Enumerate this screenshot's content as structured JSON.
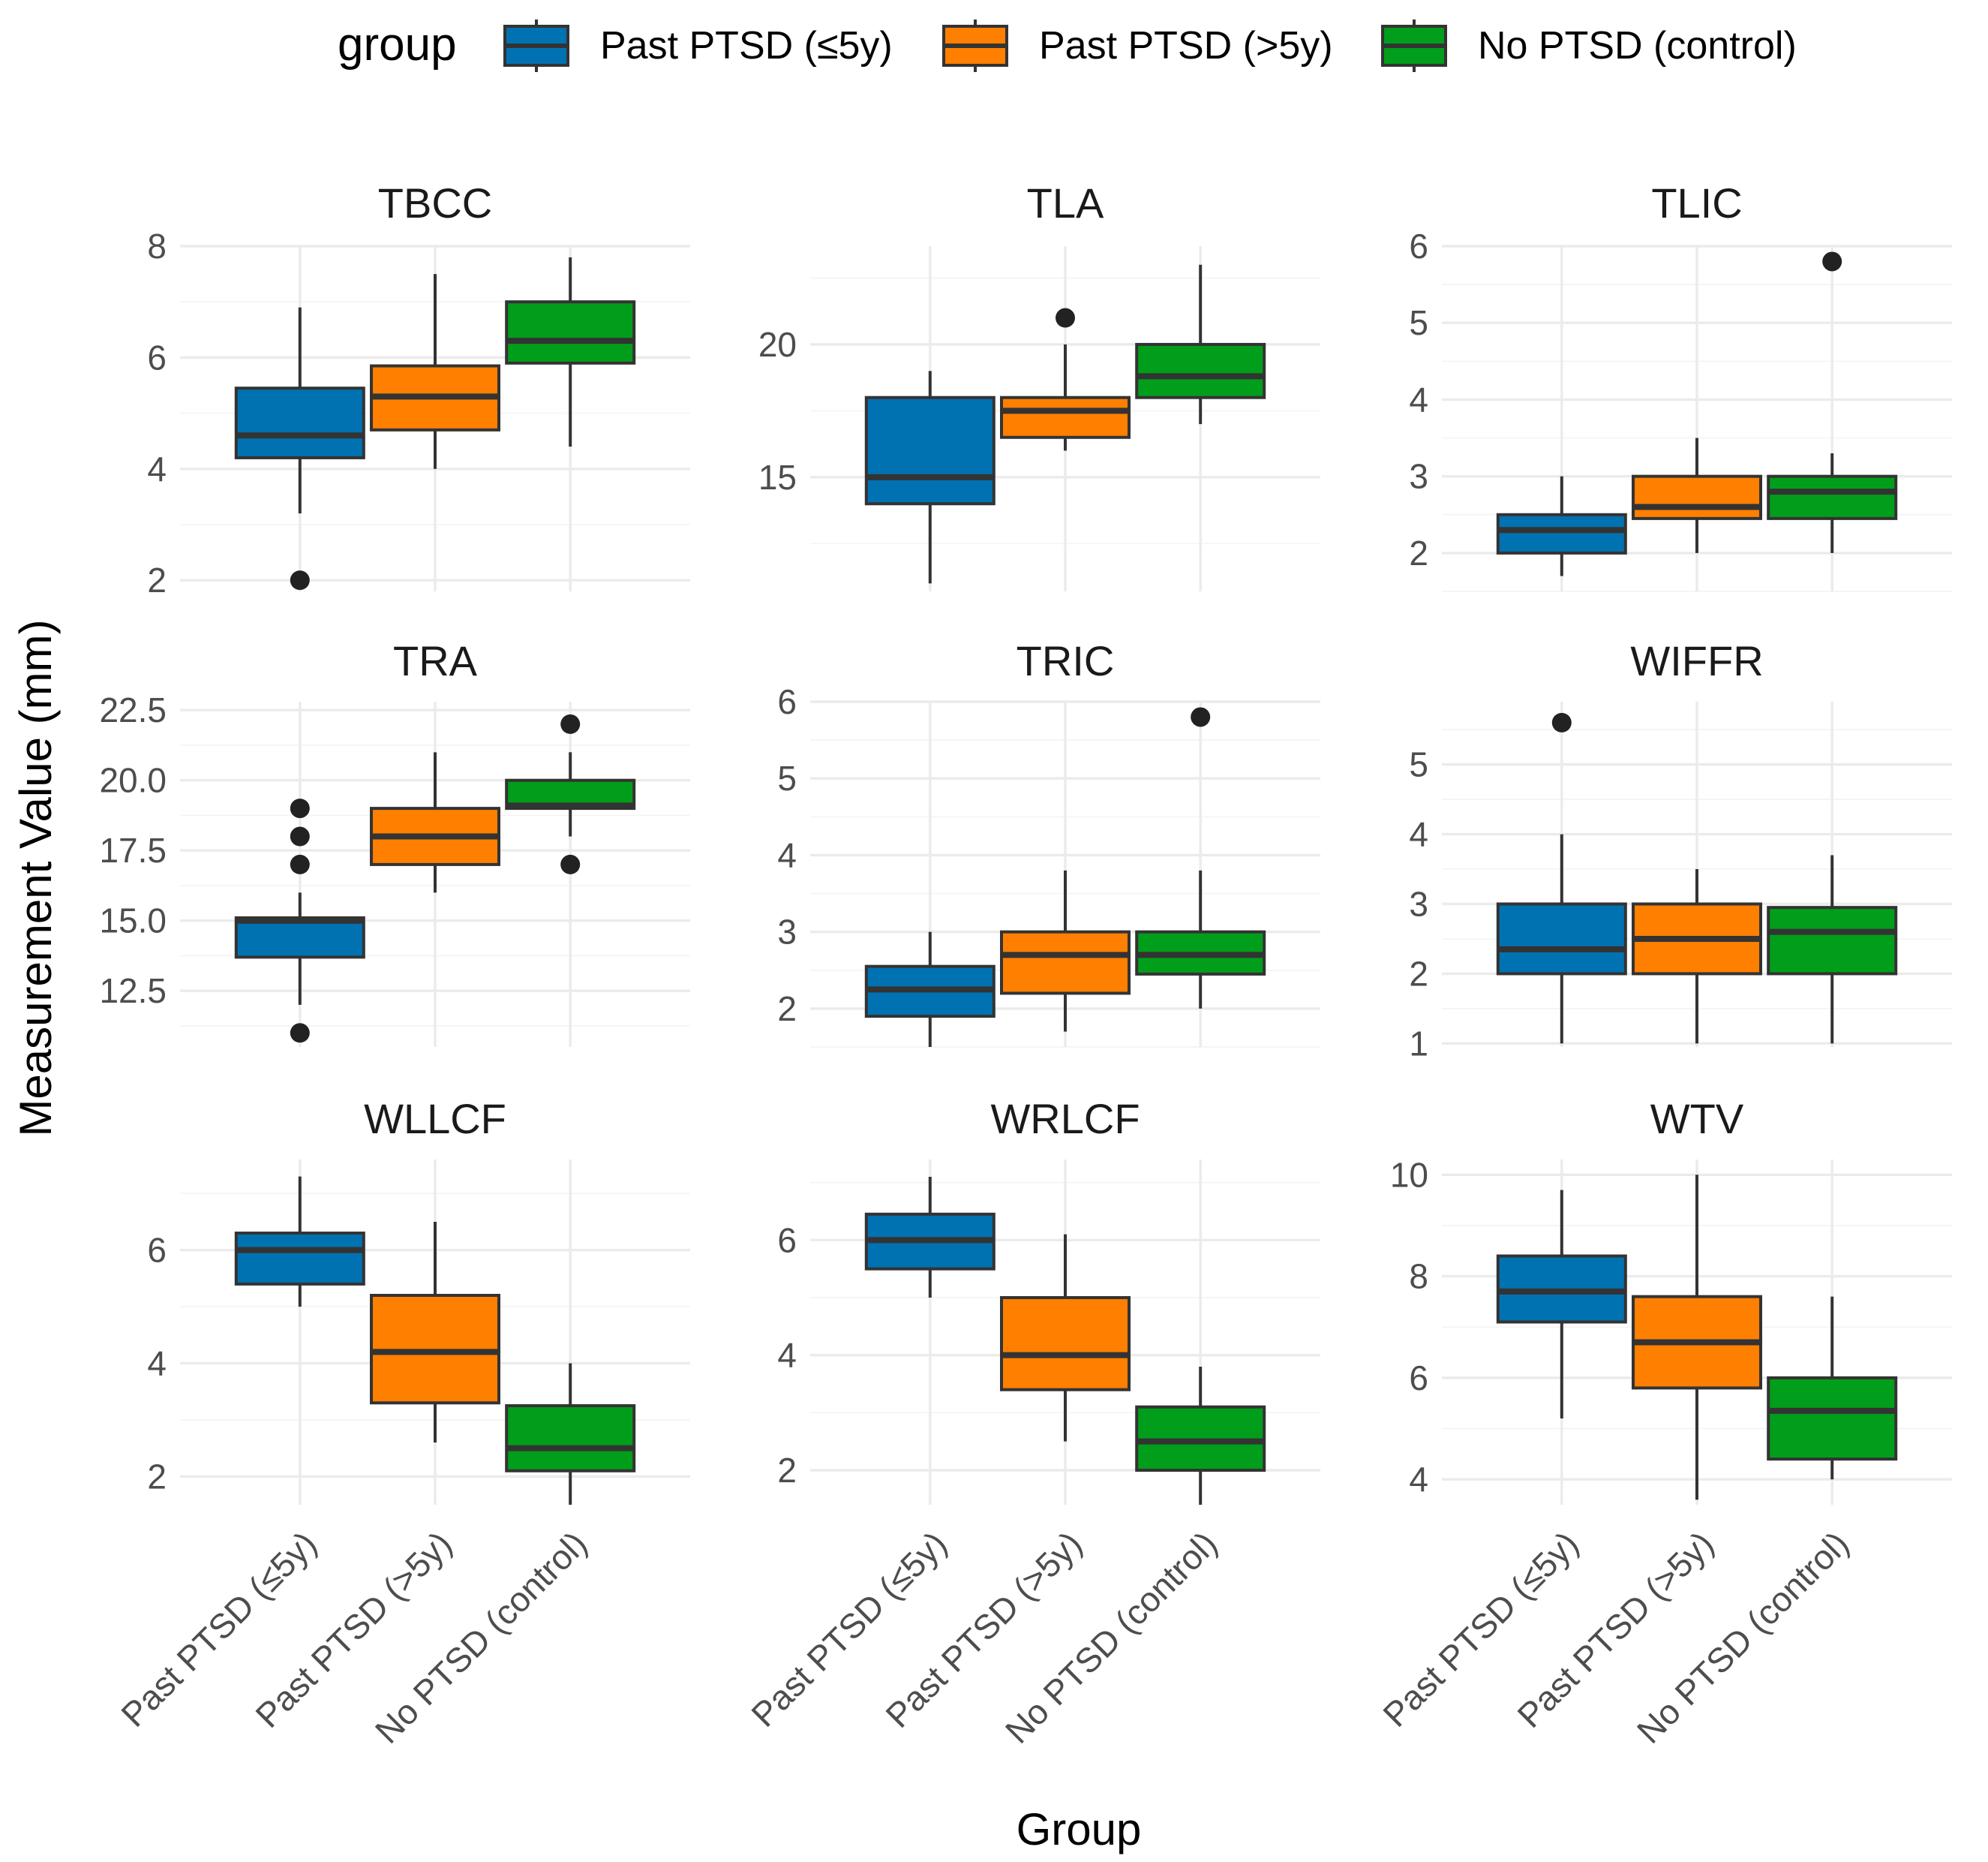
{
  "chart_data": {
    "type": "boxplot",
    "facet_layout": "3x3 grid, free y scales",
    "legend": {
      "title": "group",
      "position": "top",
      "entries": [
        {
          "label": "Past PTSD (≤5y)",
          "color": "#0072B2"
        },
        {
          "label": "Past PTSD (>5y)",
          "color": "#FF7F00"
        },
        {
          "label": "No PTSD (control)",
          "color": "#009E1A"
        }
      ]
    },
    "categories": [
      "Past PTSD (≤5y)",
      "Past PTSD (>5y)",
      "No PTSD (control)"
    ],
    "xlabel": "Group",
    "ylabel": "Measurement Value (mm)",
    "colors": {
      "median_line": "#333333",
      "outline": "#333333",
      "outlier": "#222222"
    },
    "panels": [
      {
        "title": "TBCC",
        "ylim": [
          1.8,
          8.0
        ],
        "yticks": [
          "2",
          "4",
          "6",
          "8"
        ],
        "ytick_values": [
          2,
          4,
          6,
          8
        ],
        "boxes": [
          {
            "min": 3.2,
            "q1": 4.2,
            "median": 4.6,
            "q3": 5.45,
            "max": 6.9,
            "outliers": [
              2.0
            ]
          },
          {
            "min": 4.0,
            "q1": 4.7,
            "median": 5.3,
            "q3": 5.85,
            "max": 7.5,
            "outliers": []
          },
          {
            "min": 4.4,
            "q1": 5.9,
            "median": 6.3,
            "q3": 7.0,
            "max": 7.8,
            "outliers": []
          }
        ]
      },
      {
        "title": "TLA",
        "ylim": [
          10.7,
          23.7
        ],
        "yticks": [
          "15",
          "20"
        ],
        "ytick_values": [
          15,
          20
        ],
        "boxes": [
          {
            "min": 11.0,
            "q1": 14.0,
            "median": 15.0,
            "q3": 18.0,
            "max": 19.0,
            "outliers": []
          },
          {
            "min": 16.0,
            "q1": 16.5,
            "median": 17.5,
            "q3": 18.0,
            "max": 20.0,
            "outliers": [
              21.0
            ]
          },
          {
            "min": 17.0,
            "q1": 18.0,
            "median": 18.8,
            "q3": 20.0,
            "max": 23.0,
            "outliers": []
          }
        ]
      },
      {
        "title": "TLIC",
        "ylim": [
          1.5,
          6.0
        ],
        "yticks": [
          "2",
          "3",
          "4",
          "5",
          "6"
        ],
        "ytick_values": [
          2,
          3,
          4,
          5,
          6
        ],
        "boxes": [
          {
            "min": 1.7,
            "q1": 2.0,
            "median": 2.3,
            "q3": 2.5,
            "max": 3.0,
            "outliers": []
          },
          {
            "min": 2.0,
            "q1": 2.45,
            "median": 2.6,
            "q3": 3.0,
            "max": 3.5,
            "outliers": []
          },
          {
            "min": 2.0,
            "q1": 2.45,
            "median": 2.8,
            "q3": 3.0,
            "max": 3.3,
            "outliers": [
              5.8
            ]
          }
        ]
      },
      {
        "title": "TRA",
        "ylim": [
          10.5,
          22.8
        ],
        "yticks": [
          "12.5",
          "15.0",
          "17.5",
          "20.0",
          "22.5"
        ],
        "ytick_values": [
          12.5,
          15.0,
          17.5,
          20.0,
          22.5
        ],
        "boxes": [
          {
            "min": 12.0,
            "q1": 13.7,
            "median": 15.0,
            "q3": 15.1,
            "max": 16.0,
            "outliers": [
              11.0,
              17.0,
              18.0,
              19.0
            ]
          },
          {
            "min": 16.0,
            "q1": 17.0,
            "median": 18.0,
            "q3": 19.0,
            "max": 21.0,
            "outliers": []
          },
          {
            "min": 18.0,
            "q1": 19.0,
            "median": 19.1,
            "q3": 20.0,
            "max": 21.0,
            "outliers": [
              17.0,
              22.0
            ]
          }
        ]
      },
      {
        "title": "TRIC",
        "ylim": [
          1.5,
          6.0
        ],
        "yticks": [
          "2",
          "3",
          "4",
          "5",
          "6"
        ],
        "ytick_values": [
          2,
          3,
          4,
          5,
          6
        ],
        "boxes": [
          {
            "min": 1.5,
            "q1": 1.9,
            "median": 2.25,
            "q3": 2.55,
            "max": 3.0,
            "outliers": []
          },
          {
            "min": 1.7,
            "q1": 2.2,
            "median": 2.7,
            "q3": 3.0,
            "max": 3.8,
            "outliers": []
          },
          {
            "min": 2.0,
            "q1": 2.45,
            "median": 2.7,
            "q3": 3.0,
            "max": 3.8,
            "outliers": [
              5.8
            ]
          }
        ]
      },
      {
        "title": "WIFFR",
        "ylim": [
          0.95,
          5.9
        ],
        "yticks": [
          "1",
          "2",
          "3",
          "4",
          "5"
        ],
        "ytick_values": [
          1,
          2,
          3,
          4,
          5
        ],
        "boxes": [
          {
            "min": 1.0,
            "q1": 2.0,
            "median": 2.35,
            "q3": 3.0,
            "max": 4.0,
            "outliers": [
              5.6
            ]
          },
          {
            "min": 1.0,
            "q1": 2.0,
            "median": 2.5,
            "q3": 3.0,
            "max": 3.5,
            "outliers": []
          },
          {
            "min": 1.0,
            "q1": 2.0,
            "median": 2.6,
            "q3": 2.95,
            "max": 3.7,
            "outliers": []
          }
        ]
      },
      {
        "title": "WLLCF",
        "ylim": [
          1.5,
          7.6
        ],
        "yticks": [
          "2",
          "4",
          "6"
        ],
        "ytick_values": [
          2,
          4,
          6
        ],
        "boxes": [
          {
            "min": 5.0,
            "q1": 5.4,
            "median": 6.0,
            "q3": 6.3,
            "max": 7.3,
            "outliers": []
          },
          {
            "min": 2.6,
            "q1": 3.3,
            "median": 4.2,
            "q3": 5.2,
            "max": 6.5,
            "outliers": []
          },
          {
            "min": 1.5,
            "q1": 2.1,
            "median": 2.5,
            "q3": 3.25,
            "max": 4.0,
            "outliers": []
          }
        ]
      },
      {
        "title": "WRLCF",
        "ylim": [
          1.4,
          7.4
        ],
        "yticks": [
          "2",
          "4",
          "6"
        ],
        "ytick_values": [
          2,
          4,
          6
        ],
        "boxes": [
          {
            "min": 5.0,
            "q1": 5.5,
            "median": 6.0,
            "q3": 6.45,
            "max": 7.1,
            "outliers": []
          },
          {
            "min": 2.5,
            "q1": 3.4,
            "median": 4.0,
            "q3": 5.0,
            "max": 6.1,
            "outliers": []
          },
          {
            "min": 1.4,
            "q1": 2.0,
            "median": 2.5,
            "q3": 3.1,
            "max": 3.8,
            "outliers": []
          }
        ]
      },
      {
        "title": "WTV",
        "ylim": [
          3.5,
          10.3
        ],
        "yticks": [
          "4",
          "6",
          "8",
          "10"
        ],
        "ytick_values": [
          4,
          6,
          8,
          10
        ],
        "boxes": [
          {
            "min": 5.2,
            "q1": 7.1,
            "median": 7.7,
            "q3": 8.4,
            "max": 9.7,
            "outliers": []
          },
          {
            "min": 3.6,
            "q1": 5.8,
            "median": 6.7,
            "q3": 7.6,
            "max": 10.0,
            "outliers": []
          },
          {
            "min": 4.0,
            "q1": 4.4,
            "median": 5.35,
            "q3": 6.0,
            "max": 7.6,
            "outliers": []
          }
        ]
      }
    ]
  }
}
